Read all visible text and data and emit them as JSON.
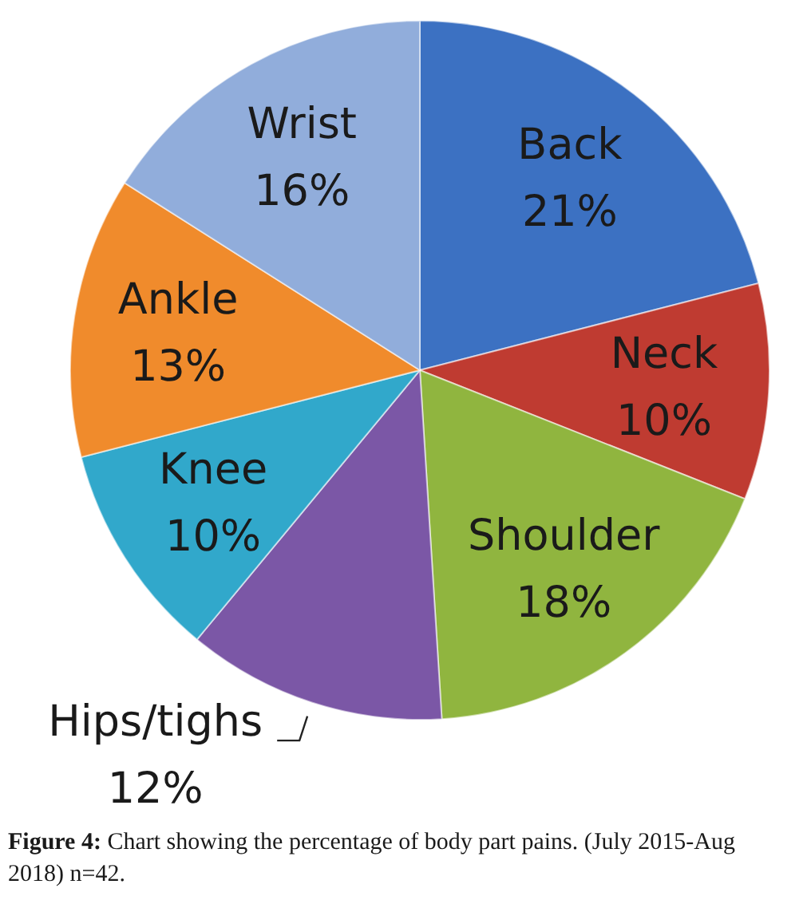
{
  "chart_data": {
    "type": "pie",
    "categories": [
      "Back",
      "Neck",
      "Shoulder",
      "Hips/tighs",
      "Knee",
      "Ankle",
      "Wrist"
    ],
    "values": [
      21,
      10,
      18,
      12,
      10,
      13,
      16
    ],
    "value_labels": [
      "21%",
      "10%",
      "18%",
      "12%",
      "10%",
      "13%",
      "16%"
    ],
    "colors": [
      "#3c71c2",
      "#bf3b31",
      "#90b53f",
      "#7b57a6",
      "#31a8cb",
      "#f08b2c",
      "#91addb"
    ],
    "annotations": [
      "Figure 4: Chart showing the percentage of body part pains. (July 2015-Aug 2018) n=42."
    ]
  }
}
